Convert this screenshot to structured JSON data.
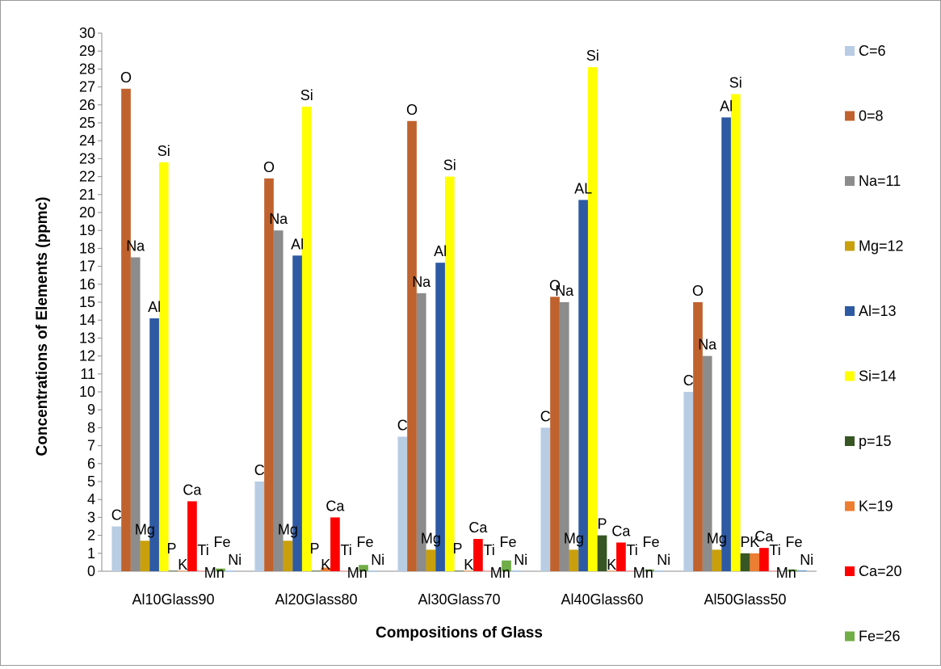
{
  "chart_data": {
    "type": "bar",
    "title": "",
    "xlabel": "Compositions of Glass",
    "ylabel": "Concentrations of Elements (ppmc)",
    "ylim": [
      0,
      30
    ],
    "ytick_step": 1,
    "categories": [
      "Al10Glass90",
      "Al20Glass80",
      "Al30Glass70",
      "Al40Glass60",
      "Al50Glass50"
    ],
    "series": [
      {
        "name": "C=6",
        "color": "#b8cce4",
        "values": [
          2.5,
          5.0,
          7.5,
          8.0,
          10.0
        ],
        "labels": [
          "C",
          "C",
          "C",
          "C",
          "C"
        ]
      },
      {
        "name": "0=8",
        "color": "#c0622d",
        "values": [
          26.9,
          21.9,
          25.1,
          15.3,
          15.0
        ],
        "labels": [
          "O",
          "O",
          "O",
          "O",
          "O"
        ]
      },
      {
        "name": "Na=11",
        "color": "#8c8c8c",
        "values": [
          17.5,
          19.0,
          15.5,
          15.0,
          12.0
        ],
        "labels": [
          "Na",
          "Na",
          "Na",
          "Na",
          "Na"
        ]
      },
      {
        "name": "Mg=12",
        "color": "#c9a00c",
        "values": [
          1.7,
          1.7,
          1.2,
          1.2,
          1.2
        ],
        "labels": [
          "Mg",
          "Mg",
          "Mg",
          "Mg",
          "Mg"
        ]
      },
      {
        "name": "Al=13",
        "color": "#2e5aa3",
        "values": [
          14.1,
          17.6,
          17.2,
          20.7,
          25.3
        ],
        "labels": [
          "Al",
          "Al",
          "Al",
          "AL",
          "Al"
        ]
      },
      {
        "name": "Si=14",
        "color": "#ffff00",
        "values": [
          22.8,
          25.9,
          22.0,
          28.1,
          26.6
        ],
        "labels": [
          "Si",
          "Si",
          "Si",
          "Si",
          "Si"
        ]
      },
      {
        "name": "p=15",
        "color": "#375623",
        "values": [
          0.03,
          0.03,
          0.03,
          2.0,
          1.0
        ],
        "labels": [
          "P",
          "P",
          "P",
          "P",
          "P"
        ]
      },
      {
        "name": "K=19",
        "color": "#ed7d31",
        "values": [
          0.03,
          0.2,
          0.03,
          0.03,
          1.0
        ],
        "labels": [
          "K",
          "K",
          "K",
          "K",
          "K"
        ]
      },
      {
        "name": "Ca=20",
        "color": "#ff0000",
        "values": [
          3.9,
          3.0,
          1.8,
          1.6,
          1.3
        ],
        "labels": [
          "Ca",
          "Ca",
          "Ca",
          "Ca",
          "Ca"
        ]
      },
      {
        "name": "Ti",
        "color": "#ff8080",
        "values": [
          0.03,
          0.03,
          0.03,
          0.03,
          0.03
        ],
        "labels": [
          "Ti",
          "Ti",
          "Ti",
          "Ti",
          "Ti"
        ],
        "in_legend": false
      },
      {
        "name": "Mn",
        "color": "#bfbfbf",
        "values": [
          0.02,
          0.02,
          0.02,
          0.02,
          0.02
        ],
        "labels": [
          "Mn",
          "Mn",
          "Mn",
          "Mn",
          "Mn"
        ],
        "in_legend": false
      },
      {
        "name": "Fe=26",
        "color": "#70ad47",
        "values": [
          0.15,
          0.35,
          0.6,
          0.1,
          0.1
        ],
        "labels": [
          "Fe",
          "Fe",
          "Fe",
          "Fe",
          "Fe"
        ]
      },
      {
        "name": "Ni",
        "color": "#5b9bd5",
        "values": [
          0.02,
          0.02,
          0.02,
          0.02,
          0.05
        ],
        "labels": [
          "Ni",
          "Ni",
          "Ni",
          "Ni",
          "Ni"
        ],
        "in_legend": false
      }
    ],
    "legend_position": "right"
  }
}
